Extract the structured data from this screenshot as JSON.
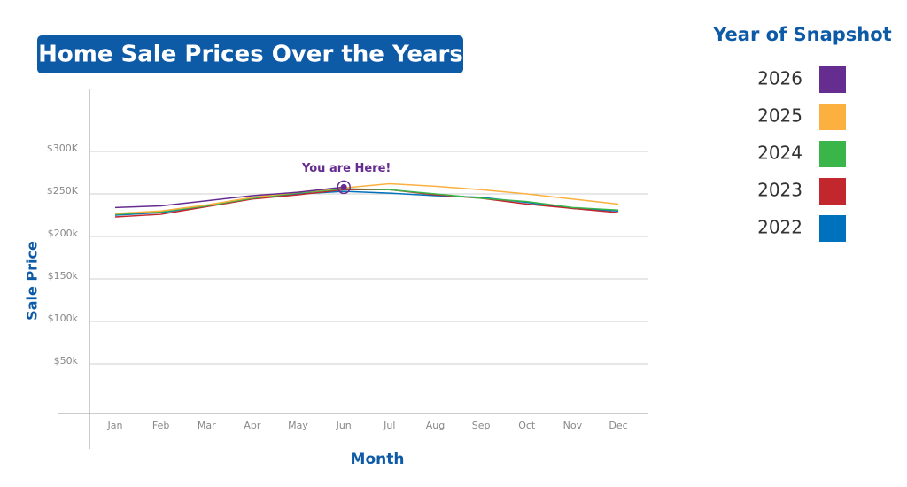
{
  "chart_data": {
    "type": "line",
    "title": "Home Sale Prices Over the Years",
    "x_label": "Month",
    "y_label": "Sale Price",
    "legend_title": "Year of Snapshot",
    "annotation": "You are Here!",
    "categories": [
      "Jan",
      "Feb",
      "Mar",
      "Apr",
      "May",
      "Jun",
      "Jul",
      "Aug",
      "Sep",
      "Oct",
      "Nov",
      "Dec"
    ],
    "series": [
      {
        "name": "2026",
        "color": "#662d91",
        "values": [
          234000,
          236000,
          242000,
          248000,
          252000,
          258000,
          null,
          null,
          null,
          null,
          null,
          null
        ]
      },
      {
        "name": "2025",
        "color": "#fbb040",
        "values": [
          227000,
          230000,
          237000,
          246000,
          252000,
          257000,
          262000,
          259000,
          255000,
          250000,
          244000,
          238000
        ]
      },
      {
        "name": "2024",
        "color": "#39b54a",
        "values": [
          226000,
          229000,
          236000,
          245000,
          251000,
          256000,
          255000,
          250000,
          245000,
          241000,
          234000,
          231000
        ]
      },
      {
        "name": "2023",
        "color": "#c1272d",
        "values": [
          223000,
          226000,
          235000,
          244000,
          249000,
          255000,
          255000,
          249000,
          245000,
          238000,
          233000,
          228000
        ]
      },
      {
        "name": "2022",
        "color": "#0071bc",
        "values": [
          225000,
          228000,
          236000,
          245000,
          250000,
          253000,
          251000,
          248000,
          246000,
          240000,
          233000,
          230000
        ]
      }
    ],
    "ylim": [
      0,
      374000
    ],
    "yticks": [
      {
        "value": 50000,
        "label": "$50k"
      },
      {
        "value": 100000,
        "label": "$100k"
      },
      {
        "value": 150000,
        "label": "$150k"
      },
      {
        "value": 200000,
        "label": "$200k"
      },
      {
        "value": 250000,
        "label": "$250K"
      },
      {
        "value": 300000,
        "label": "$300K"
      }
    ],
    "grid": true
  }
}
